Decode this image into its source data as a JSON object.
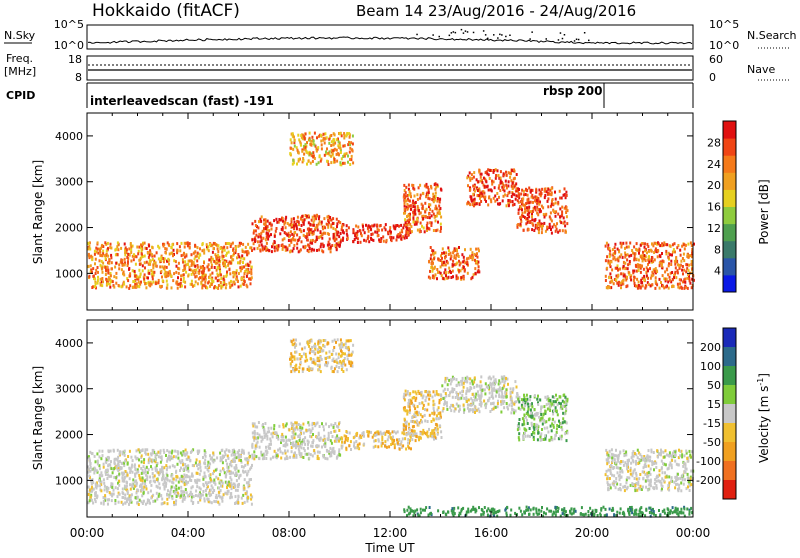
{
  "header": {
    "station": "Hokkaido (fitACF)",
    "beam_info": "Beam 14 23/Aug/2016 - 24/Aug/2016"
  },
  "top_panels": {
    "nsky": {
      "label": "N.Sky",
      "left_ticks": [
        "10^5",
        "10^0"
      ],
      "right_ticks": [
        "10^5",
        "10^0"
      ],
      "right_label": "N.Search"
    },
    "freq": {
      "label_line1": "Freq.",
      "label_line2": "[MHz]",
      "left_ticks": [
        "18",
        "8"
      ],
      "right_ticks": [
        "60",
        "0"
      ],
      "right_label": "Nave"
    },
    "cpid": {
      "label": "CPID",
      "segments": [
        {
          "text": "interleavedscan (fast) -191",
          "start_h": 0.0
        },
        {
          "text": "rbsp 200",
          "start_h": 20.5
        }
      ]
    }
  },
  "chart_data": [
    {
      "type": "heatmap",
      "name": "power",
      "ylabel": "Slant Range [km]",
      "xlabel": "",
      "xlim_hours": [
        0,
        24
      ],
      "ylim_km": [
        200,
        4500
      ],
      "y_ticks": [
        "1000",
        "2000",
        "3000",
        "4000"
      ],
      "x_ticks": [
        "00:00",
        "04:00",
        "08:00",
        "12:00",
        "16:00",
        "20:00",
        "00:00"
      ],
      "colorbar": {
        "label": "Power [dB]",
        "ticks": [
          "4",
          "8",
          "12",
          "16",
          "20",
          "24",
          "28"
        ],
        "colors": [
          "#0a19e6",
          "#2a55a8",
          "#3a7a6a",
          "#4fa04f",
          "#8fcc3e",
          "#e6d020",
          "#f0a020",
          "#f57a1a",
          "#f04515",
          "#e01010"
        ]
      },
      "bands": [
        {
          "t0": 0.0,
          "t1": 6.5,
          "r0": 700,
          "r1": 1700,
          "power_db": 22
        },
        {
          "t0": 6.5,
          "t1": 10.0,
          "r0": 1500,
          "r1": 2300,
          "power_db": 26
        },
        {
          "t0": 8.0,
          "t1": 10.5,
          "r0": 3400,
          "r1": 4100,
          "power_db": 20
        },
        {
          "t0": 10.0,
          "t1": 12.8,
          "r0": 1700,
          "r1": 2100,
          "power_db": 28
        },
        {
          "t0": 12.5,
          "t1": 14.0,
          "r0": 1900,
          "r1": 3000,
          "power_db": 24
        },
        {
          "t0": 13.5,
          "t1": 15.5,
          "r0": 900,
          "r1": 1600,
          "power_db": 24
        },
        {
          "t0": 15.0,
          "t1": 17.0,
          "r0": 2500,
          "r1": 3300,
          "power_db": 26
        },
        {
          "t0": 17.0,
          "t1": 19.0,
          "r0": 1900,
          "r1": 2900,
          "power_db": 26
        },
        {
          "t0": 20.5,
          "t1": 24.0,
          "r0": 700,
          "r1": 1700,
          "power_db": 24
        }
      ]
    },
    {
      "type": "heatmap",
      "name": "velocity",
      "ylabel": "Slant Range [km]",
      "xlabel": "Time UT",
      "xlim_hours": [
        0,
        24
      ],
      "ylim_km": [
        200,
        4500
      ],
      "y_ticks": [
        "1000",
        "2000",
        "3000",
        "4000"
      ],
      "x_ticks": [
        "00:00",
        "04:00",
        "08:00",
        "12:00",
        "16:00",
        "20:00",
        "00:00"
      ],
      "colorbar": {
        "label": "Velocity [m s",
        "label_sup": "-1",
        "label_end": "]",
        "ticks": [
          "200",
          "100",
          "50",
          "15",
          "-15",
          "-50",
          "-100",
          "-200"
        ],
        "colors": [
          "#1a2ab8",
          "#2c6a8a",
          "#3a9a4a",
          "#7fcc3a",
          "#c8c8c8",
          "#f0c030",
          "#f0a020",
          "#f07020",
          "#e02010"
        ]
      },
      "bands": [
        {
          "t0": 0.0,
          "t1": 6.5,
          "r0": 500,
          "r1": 1700,
          "velocity": 0
        },
        {
          "t0": 6.5,
          "t1": 10.0,
          "r0": 1500,
          "r1": 2300,
          "velocity": 0
        },
        {
          "t0": 8.0,
          "t1": 10.5,
          "r0": 3400,
          "r1": 4100,
          "velocity": -20
        },
        {
          "t0": 10.0,
          "t1": 12.8,
          "r0": 1700,
          "r1": 2100,
          "velocity": -20
        },
        {
          "t0": 12.5,
          "t1": 14.0,
          "r0": 1900,
          "r1": 3000,
          "velocity": -20
        },
        {
          "t0": 14.0,
          "t1": 17.0,
          "r0": 2500,
          "r1": 3300,
          "velocity": 0
        },
        {
          "t0": 17.0,
          "t1": 19.0,
          "r0": 1900,
          "r1": 2900,
          "velocity": 20
        },
        {
          "t0": 20.5,
          "t1": 24.0,
          "r0": 800,
          "r1": 1700,
          "velocity": 0
        },
        {
          "t0": 12.5,
          "t1": 24.0,
          "r0": 250,
          "r1": 450,
          "velocity": 60
        }
      ]
    }
  ]
}
